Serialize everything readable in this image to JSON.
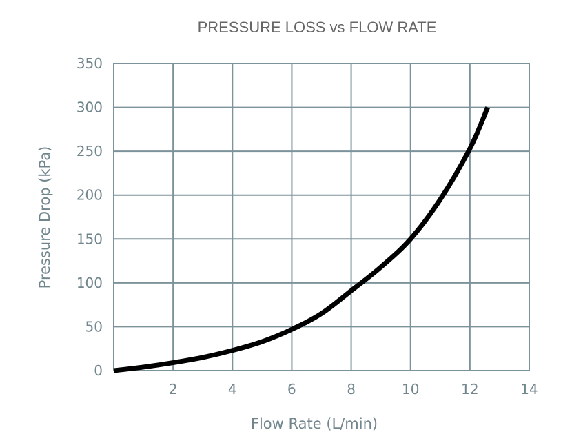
{
  "chart_data": {
    "type": "line",
    "title": "PRESSURE LOSS vs FLOW RATE",
    "xlabel": "Flow Rate (L/min)",
    "ylabel": "Pressure Drop (kPa)",
    "xlim": [
      0,
      14
    ],
    "ylim": [
      0,
      350
    ],
    "xticks": [
      "2",
      "4",
      "6",
      "8",
      "10",
      "12",
      "14"
    ],
    "yticks": [
      "0",
      "50",
      "100",
      "150",
      "200",
      "250",
      "300",
      "350"
    ],
    "grid": true,
    "colors": {
      "line": "#000000",
      "grid": "#7d939c",
      "text": "#71858d",
      "title": "#666666"
    },
    "series": [
      {
        "x": [
          0,
          1,
          2,
          3,
          4,
          5,
          6,
          7,
          8,
          9,
          10,
          11,
          12,
          12.6
        ],
        "y": [
          0,
          4,
          9,
          15,
          23,
          33,
          47,
          65,
          91,
          118,
          150,
          195,
          253,
          300
        ]
      }
    ]
  }
}
